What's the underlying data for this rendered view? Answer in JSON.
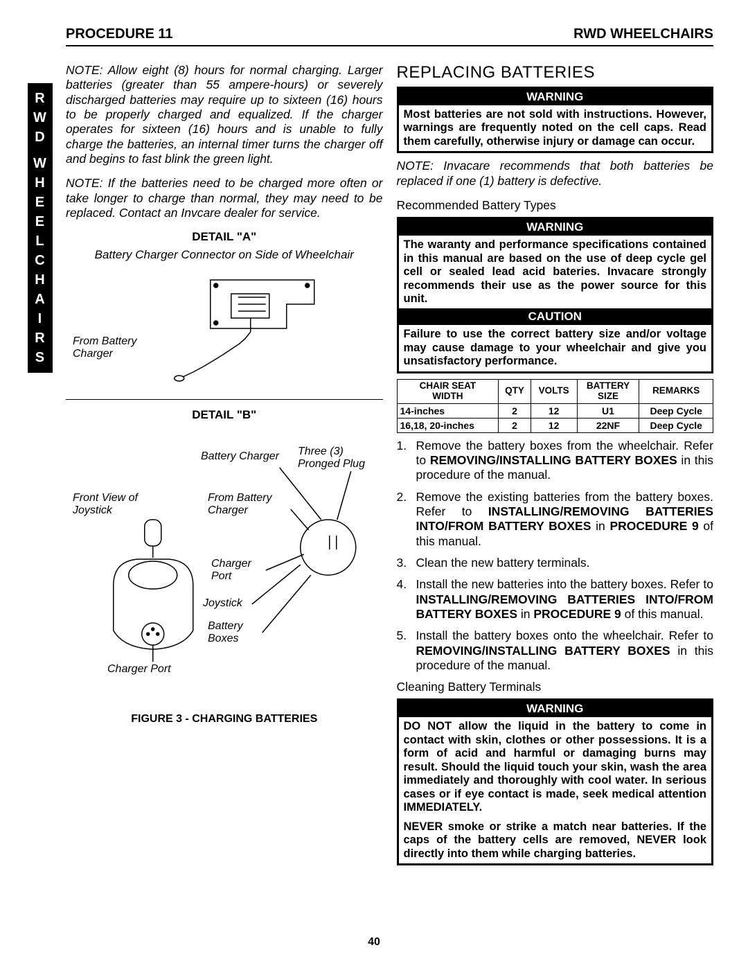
{
  "header": {
    "left": "PROCEDURE 11",
    "right": "RWD WHEELCHAIRS"
  },
  "side_label": "RWD WHEELCHAIRS",
  "left_col": {
    "note1": "NOTE: Allow eight (8) hours for normal charging. Larger batteries (greater than 55 ampere-hours) or severely discharged batteries may require up to sixteen (16) hours to be properly charged and equalized. If the charger operates for sixteen (16) hours and is unable to fully charge the batteries, an internal timer turns the charger off and begins to fast blink the green light.",
    "note2": "NOTE: If the batteries need to be charged more often or take longer to charge than normal, they may need to be replaced. Contact an Invcare dealer for service.",
    "detailA": {
      "label": "DETAIL \"A\"",
      "caption": "Battery Charger Connector on Side of Wheelchair",
      "from_charger": "From Battery Charger"
    },
    "detailB": {
      "label": "DETAIL \"B\"",
      "battery_charger": "Battery Charger",
      "three_prong": "Three (3) Pronged Plug",
      "front_joystick": "Front View of Joystick",
      "from_charger": "From Battery Charger",
      "charger_port": "Charger Port",
      "joystick": "Joystick",
      "battery_boxes": "Battery Boxes",
      "charger_port2": "Charger Port"
    },
    "figure_caption": "FIGURE 3  - CHARGING BATTERIES"
  },
  "right_col": {
    "heading": "REPLACING BATTERIES",
    "warn1_title": "WARNING",
    "warn1_body": "Most batteries are not sold with instructions. However, warnings are frequently noted on the cell caps. Read them carefully, otherwise injury or damage can occur.",
    "note_rec": "NOTE: Invacare recommends that both batteries be replaced if one (1) battery is defective.",
    "sub_rec": "Recommended Battery Types",
    "warn2_title": "WARNING",
    "warn2_body": "The waranty and performance specifications contained in this manual are based on the use of deep cycle gel cell or sealed lead acid bateries. Invacare strongly recommends their use as the power source for this unit.",
    "caution_title": "CAUTION",
    "caution_body": "Failure to use the correct battery size and/or voltage may cause damage to your wheelchair and give you unsatisfactory performance.",
    "table": {
      "headers": [
        "CHAIR SEAT WIDTH",
        "QTY",
        "VOLTS",
        "BATTERY SIZE",
        "REMARKS"
      ],
      "rows": [
        [
          "14-inches",
          "2",
          "12",
          "U1",
          "Deep Cycle"
        ],
        [
          "16,18, 20-inches",
          "2",
          "12",
          "22NF",
          "Deep Cycle"
        ]
      ]
    },
    "steps": [
      "Remove the battery boxes from the wheelchair. Refer to <b>REMOVING/INSTALLING BATTERY BOXES</b> in this procedure of the manual.",
      "Remove the existing batteries from the battery boxes. Refer to <b>INSTALLING/REMOVING BATTERIES INTO/FROM BATTERY BOXES</b> in <b>PROCEDURE 9</b> of this manual.",
      "Clean the new battery terminals.",
      "Install the new batteries into the battery boxes. Refer to <b>INSTALLING/REMOVING BATTERIES INTO/FROM BATTERY BOXES</b> in <b>PROCEDURE 9</b> of this manual.",
      "Install the battery boxes onto the wheelchair. Refer to <b>REMOVING/INSTALLING BATTERY BOXES</b> in this procedure of the manual."
    ],
    "sub_clean": "Cleaning Battery Terminals",
    "warn3_title": "WARNING",
    "warn3_p1": "DO NOT allow the liquid in the battery to come in contact with skin, clothes or other possessions. It is a form of acid and harmful or damaging burns may result. Should the liquid touch your skin, wash the area immediately and thoroughly with cool water. In serious cases or if eye contact is made, seek medical attention IMMEDIATELY.",
    "warn3_p2": "NEVER smoke or strike a match near batteries. If the caps of the battery cells are removed, NEVER look directly into them while charging batteries."
  },
  "page_number": "40"
}
